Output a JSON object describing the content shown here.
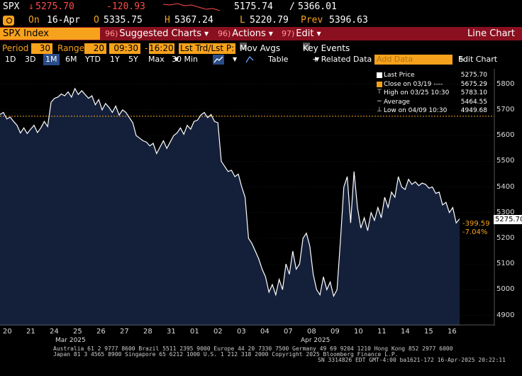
{
  "quote": {
    "ticker": "SPX",
    "arrow": "↓",
    "last": "5275.70",
    "change": "-120.93",
    "range_low": "5175.74",
    "range_sep": "/",
    "range_high": "5366.01"
  },
  "session": {
    "on_label": "On",
    "date": "16-Apr",
    "open_label": "O",
    "open": "5335.75",
    "high_label": "H",
    "high": "5367.24",
    "low_label": "L",
    "low": "5220.79",
    "prev_label": "Prev",
    "prev": "5396.63"
  },
  "titlebar": {
    "security": "SPX Index",
    "menus": [
      {
        "num": "96)",
        "label": "Suggested Charts"
      },
      {
        "num": "96)",
        "label": "Actions"
      },
      {
        "num": "97)",
        "label": "Edit"
      }
    ],
    "title": "Line Chart"
  },
  "period_bar": {
    "period_label": "Period",
    "period_value": "30",
    "range_label": "Range",
    "range_value": "20",
    "time_from": "09:30",
    "time_sep": "-",
    "time_to": "16:20",
    "trade_field": "Lst Trd/Lst P:",
    "mov_avgs": "Mov Avgs",
    "key_events": "Key Events"
  },
  "range_bar": {
    "buttons": [
      "1D",
      "3D",
      "1M",
      "6M",
      "YTD",
      "1Y",
      "5Y",
      "Max"
    ],
    "active": "1M",
    "interval": "30 Min",
    "table": "Table",
    "related": "+ Related Data",
    "add_data": "Add Data",
    "edit_chart": "Edit Chart"
  },
  "legend": {
    "rows": [
      {
        "label": "Last Price",
        "value": "5275.70",
        "color": "#ffffff"
      },
      {
        "label": "Close on 03/19 ----",
        "value": "5675.29",
        "color": "#f7a21c"
      },
      {
        "label": "High on 03/25 10:30",
        "value": "5783.10",
        "color": "#ffffff"
      },
      {
        "label": "Average",
        "value": "5464.55",
        "color": "#ffffff"
      },
      {
        "label": "Low on 04/09 10:30",
        "value": "4949.68",
        "color": "#ffffff"
      }
    ]
  },
  "price_tag": {
    "last": "5275.70",
    "change": "-399.59",
    "pct": "-7.04%"
  },
  "colors": {
    "accent": "#f7a21c",
    "title_bar": "#8a0f1f",
    "fill": "#14203a",
    "line": "#ffffff",
    "ref_line": "#f7a21c"
  },
  "chart_data": {
    "type": "area",
    "ylim": [
      4860,
      5860
    ],
    "yticks": [
      "5800",
      "5700",
      "5600",
      "5500",
      "5400",
      "5300",
      "5200",
      "5100",
      "5000",
      "4900"
    ],
    "reference_close": 5675.29,
    "x_labels": [
      "20",
      "21",
      "24",
      "25",
      "26",
      "27",
      "28",
      "31",
      "01",
      "02",
      "03",
      "04",
      "07",
      "08",
      "09",
      "10",
      "11",
      "14",
      "15",
      "16"
    ],
    "months": [
      "Mar 2025",
      "Apr 2025"
    ],
    "values": [
      5682,
      5690,
      5665,
      5672,
      5655,
      5640,
      5610,
      5630,
      5608,
      5625,
      5640,
      5612,
      5630,
      5655,
      5635,
      5730,
      5745,
      5750,
      5762,
      5755,
      5770,
      5750,
      5783,
      5760,
      5775,
      5760,
      5745,
      5755,
      5720,
      5740,
      5700,
      5725,
      5710,
      5690,
      5715,
      5680,
      5700,
      5690,
      5670,
      5650,
      5600,
      5590,
      5580,
      5575,
      5560,
      5570,
      5530,
      5555,
      5580,
      5550,
      5575,
      5600,
      5610,
      5630,
      5605,
      5640,
      5625,
      5655,
      5660,
      5680,
      5690,
      5670,
      5682,
      5655,
      5650,
      5500,
      5480,
      5460,
      5465,
      5440,
      5450,
      5400,
      5360,
      5200,
      5180,
      5150,
      5120,
      5080,
      5050,
      4990,
      5020,
      4980,
      5040,
      5000,
      5100,
      5060,
      5150,
      5080,
      5100,
      5200,
      5220,
      5170,
      5060,
      5000,
      4980,
      5050,
      5000,
      5030,
      4975,
      5000,
      5190,
      5400,
      5440,
      5260,
      5460,
      5320,
      5240,
      5280,
      5230,
      5300,
      5270,
      5320,
      5280,
      5360,
      5320,
      5380,
      5360,
      5440,
      5400,
      5390,
      5430,
      5410,
      5420,
      5405,
      5415,
      5410,
      5395,
      5400,
      5375,
      5380,
      5330,
      5340,
      5300,
      5320,
      5260,
      5275.7
    ]
  },
  "footer": {
    "line1": "Australia 61 2 9777 8600 Brazil 5511 2395 9000 Europe 44 20 7330 7500 Germany 49 69 9204 1210 Hong Kong 852 2977 6000",
    "line2": "Japan 81 3 4565 8900        Singapore 65 6212 1000        U.S. 1 212 318 2000            Copyright 2025 Bloomberg Finance L.P.",
    "line3": "SN 3314826 EDT  GMT-4:00 ba1621-172 16-Apr-2025 20:22:11"
  }
}
